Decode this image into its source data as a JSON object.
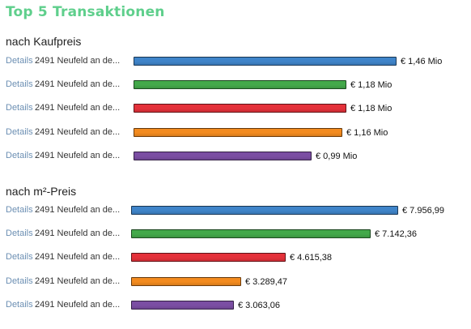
{
  "title": "Top 5 Transaktionen",
  "link_label": "Details",
  "colors": {
    "title": "#5fcf8c",
    "bars": [
      "#3f84c9",
      "#43a94a",
      "#e4313a",
      "#f38b1f",
      "#7b4ea3"
    ]
  },
  "sections": [
    {
      "heading": "nach Kaufpreis",
      "max_value": 1.46,
      "rows": [
        {
          "desc": "2491 Neufeld an de...",
          "value": 1.46,
          "value_label": "€ 1,46 Mio"
        },
        {
          "desc": "2491 Neufeld an de...",
          "value": 1.18,
          "value_label": "€ 1,18 Mio"
        },
        {
          "desc": "2491 Neufeld an de...",
          "value": 1.18,
          "value_label": "€ 1,18 Mio"
        },
        {
          "desc": "2491 Neufeld an de...",
          "value": 1.16,
          "value_label": "€ 1,16 Mio"
        },
        {
          "desc": "2491 Neufeld an de...",
          "value": 0.99,
          "value_label": "€ 0,99 Mio"
        }
      ]
    },
    {
      "heading": "nach m²-Preis",
      "max_value": 7956.99,
      "rows": [
        {
          "desc": "2491 Neufeld an de...",
          "value": 7956.99,
          "value_label": "€ 7.956,99"
        },
        {
          "desc": "2491 Neufeld an de...",
          "value": 7142.36,
          "value_label": "€ 7.142,36"
        },
        {
          "desc": "2491 Neufeld an de...",
          "value": 4615.38,
          "value_label": "€ 4.615,38"
        },
        {
          "desc": "2491 Neufeld an de...",
          "value": 3289.47,
          "value_label": "€ 3.289,47"
        },
        {
          "desc": "2491 Neufeld an de...",
          "value": 3063.06,
          "value_label": "€ 3.063,06"
        }
      ]
    }
  ]
}
